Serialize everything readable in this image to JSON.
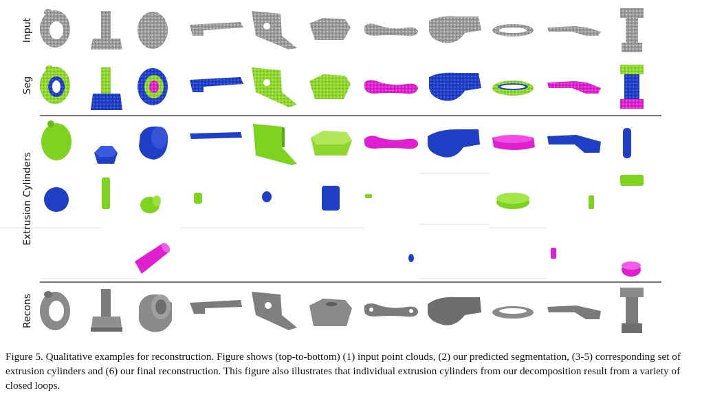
{
  "figure": {
    "row_labels": {
      "input": "Input",
      "seg": "Seg",
      "extrusion": "Extrusion Cylinders",
      "recons": "Recons"
    },
    "colors": {
      "point_cloud": "#8c8c8c",
      "seg_green": "#8fd62e",
      "seg_blue": "#1f3fc4",
      "seg_magenta": "#e020d0",
      "recon_gray": "#8a8a8a",
      "divider": "#222222"
    },
    "objects": [
      {
        "shape": "ring"
      },
      {
        "shape": "post"
      },
      {
        "shape": "cylinder"
      },
      {
        "shape": "bracket"
      },
      {
        "shape": "plate"
      },
      {
        "shape": "hex"
      },
      {
        "shape": "link"
      },
      {
        "shape": "cam"
      },
      {
        "shape": "washer"
      },
      {
        "shape": "arm"
      },
      {
        "shape": "spool"
      }
    ]
  },
  "caption": {
    "text": "Figure 5. Qualitative examples for reconstruction. Figure shows (top-to-bottom) (1) input point clouds, (2) our predicted segmentation, (3-5) corresponding set of extrusion cylinders and (6) our final reconstruction. This figure also illustrates that individual extrusion cylinders from our decomposition result from a variety of closed loops."
  }
}
